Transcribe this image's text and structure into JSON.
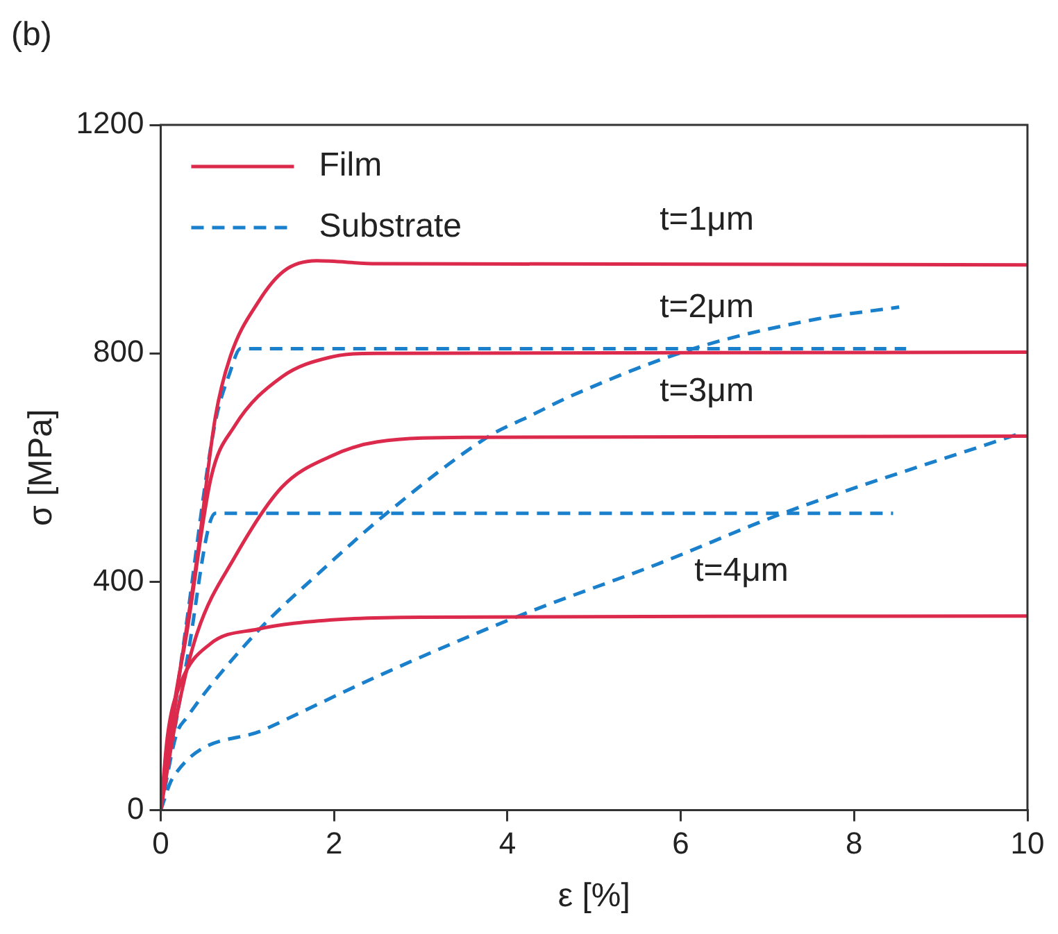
{
  "chart_data": {
    "type": "line",
    "xlabel": "ε [%]",
    "ylabel": "σ [MPa]",
    "xlim": [
      0,
      10
    ],
    "xticks": [
      0,
      2,
      4,
      6,
      8,
      10
    ],
    "ylim": [
      0,
      1200
    ],
    "yticks": [
      0,
      400,
      800,
      1200
    ],
    "grid": false,
    "legend": "top left",
    "marker": "none",
    "series": [
      {
        "name": "Film",
        "color": "#dc2a4c",
        "line_style": "solid",
        "x": [
          0,
          0.2,
          0.42,
          0.63,
          0.8,
          1.13,
          1.42,
          1.8,
          2.5,
          10
        ],
        "values": [
          0,
          220,
          442,
          688,
          793,
          891,
          944,
          962,
          957,
          955
        ]
      },
      {
        "color": "#dc2a4c",
        "line_style": "solid",
        "x": [
          0,
          0.15,
          0.3,
          0.58,
          0.85,
          1.4,
          1.95,
          2.5,
          10
        ],
        "values": [
          0,
          180,
          310,
          582,
          672,
          759,
          793,
          800,
          802
        ]
      },
      {
        "color": "#dc2a4c",
        "line_style": "solid",
        "x": [
          0,
          0.2,
          0.42,
          0.85,
          1.4,
          1.95,
          2.5,
          3.6,
          10
        ],
        "values": [
          0,
          177,
          310,
          442,
          566,
          619,
          645,
          653,
          655
        ]
      },
      {
        "color": "#dc2a4c",
        "line_style": "solid",
        "x": [
          0,
          0.08,
          0.23,
          0.57,
          1.12,
          1.95,
          3,
          10
        ],
        "values": [
          0,
          132,
          222,
          291,
          317,
          333,
          338,
          340
        ]
      },
      {
        "name": "Substrate",
        "color": "#1a80cc",
        "line_style": "dashed",
        "x": [
          0,
          0.3,
          0.62,
          0.8,
          0.92,
          8.6
        ],
        "values": [
          0,
          330,
          672,
          767,
          808,
          808
        ]
      },
      {
        "color": "#1a80cc",
        "line_style": "dashed",
        "x": [
          0,
          0.3,
          0.63,
          8.45
        ],
        "values": [
          0,
          260,
          520,
          520
        ]
      },
      {
        "color": "#1a80cc",
        "line_style": "dashed",
        "x": [
          0,
          0.18,
          0.3,
          1.08,
          1.86,
          2.64,
          3.81,
          4.23,
          4.73,
          6.12,
          7.57,
          8.52
        ],
        "values": [
          0,
          132,
          162,
          307,
          420,
          524,
          657,
          688,
          725,
          807,
          860,
          881
        ]
      },
      {
        "color": "#1a80cc",
        "line_style": "dashed",
        "x": [
          0,
          0.14,
          1.21,
          2.51,
          4.13,
          5.75,
          7.18,
          9.9
        ],
        "values": [
          0,
          57,
          142,
          235,
          340,
          432,
          520,
          659
        ]
      }
    ],
    "annotations": [
      "(b)",
      "t=1μm",
      "t=2μm",
      "t=3μm",
      "t=4μm"
    ]
  }
}
